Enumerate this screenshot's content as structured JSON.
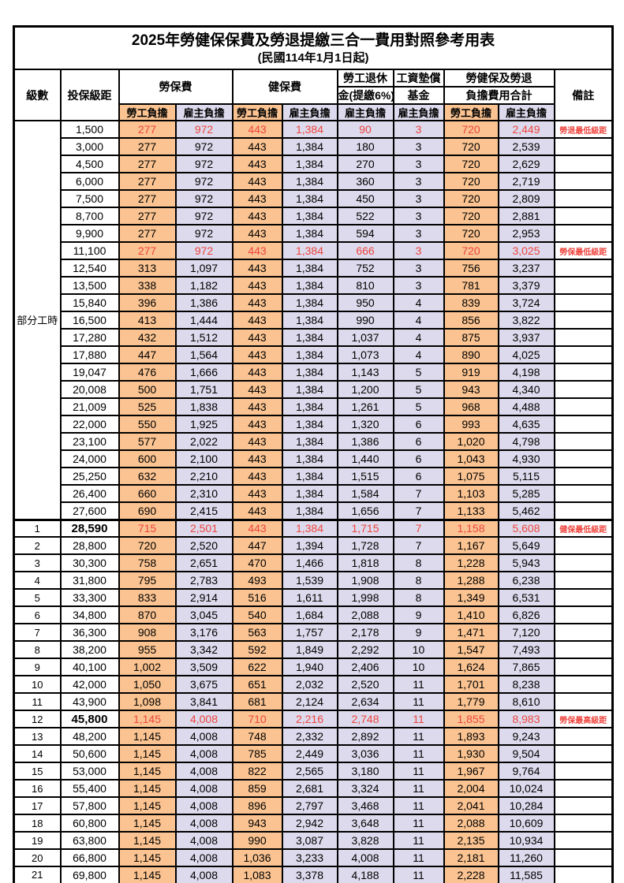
{
  "title": "2025年勞健保保費及勞退提繳三合一費用對照參考用表",
  "subtitle": "(民國114年1月1日起)",
  "header": {
    "level": "級數",
    "bracket": "投保級距",
    "labor_insurance": "勞保費",
    "health_insurance": "健保費",
    "pension_line1": "勞工退休",
    "pension_line2": "金(提繳6%)",
    "wage_fund_line1": "工資墊償",
    "wage_fund_line2": "基金",
    "total_line1": "勞健保及勞退",
    "total_line2": "負擔費用合計",
    "remark": "備註",
    "worker_burden": "勞工負擔",
    "employer_burden": "雇主負擔"
  },
  "part_time_label": "部分工時",
  "part_time_rowspan": 23,
  "colors": {
    "worker_column_bg": "#fac391",
    "employer_column_bg": "#dcdaec",
    "highlight_red": "#ee453e",
    "border_black": "#000000"
  },
  "rows": [
    {
      "bracket": "1,500",
      "li_w": "277",
      "li_e": "972",
      "hi_w": "443",
      "hi_e": "1,384",
      "pension": "90",
      "fund": "3",
      "tot_w": "720",
      "tot_e": "2,449",
      "red": true,
      "remark": "勞退最低級距"
    },
    {
      "bracket": "3,000",
      "li_w": "277",
      "li_e": "972",
      "hi_w": "443",
      "hi_e": "1,384",
      "pension": "180",
      "fund": "3",
      "tot_w": "720",
      "tot_e": "2,539"
    },
    {
      "bracket": "4,500",
      "li_w": "277",
      "li_e": "972",
      "hi_w": "443",
      "hi_e": "1,384",
      "pension": "270",
      "fund": "3",
      "tot_w": "720",
      "tot_e": "2,629"
    },
    {
      "bracket": "6,000",
      "li_w": "277",
      "li_e": "972",
      "hi_w": "443",
      "hi_e": "1,384",
      "pension": "360",
      "fund": "3",
      "tot_w": "720",
      "tot_e": "2,719"
    },
    {
      "bracket": "7,500",
      "li_w": "277",
      "li_e": "972",
      "hi_w": "443",
      "hi_e": "1,384",
      "pension": "450",
      "fund": "3",
      "tot_w": "720",
      "tot_e": "2,809"
    },
    {
      "bracket": "8,700",
      "li_w": "277",
      "li_e": "972",
      "hi_w": "443",
      "hi_e": "1,384",
      "pension": "522",
      "fund": "3",
      "tot_w": "720",
      "tot_e": "2,881"
    },
    {
      "bracket": "9,900",
      "li_w": "277",
      "li_e": "972",
      "hi_w": "443",
      "hi_e": "1,384",
      "pension": "594",
      "fund": "3",
      "tot_w": "720",
      "tot_e": "2,953"
    },
    {
      "bracket": "11,100",
      "li_w": "277",
      "li_e": "972",
      "hi_w": "443",
      "hi_e": "1,384",
      "pension": "666",
      "fund": "3",
      "tot_w": "720",
      "tot_e": "3,025",
      "red": true,
      "remark": "勞保最低級距"
    },
    {
      "bracket": "12,540",
      "li_w": "313",
      "li_e": "1,097",
      "hi_w": "443",
      "hi_e": "1,384",
      "pension": "752",
      "fund": "3",
      "tot_w": "756",
      "tot_e": "3,237"
    },
    {
      "bracket": "13,500",
      "li_w": "338",
      "li_e": "1,182",
      "hi_w": "443",
      "hi_e": "1,384",
      "pension": "810",
      "fund": "3",
      "tot_w": "781",
      "tot_e": "3,379"
    },
    {
      "bracket": "15,840",
      "li_w": "396",
      "li_e": "1,386",
      "hi_w": "443",
      "hi_e": "1,384",
      "pension": "950",
      "fund": "4",
      "tot_w": "839",
      "tot_e": "3,724"
    },
    {
      "bracket": "16,500",
      "li_w": "413",
      "li_e": "1,444",
      "hi_w": "443",
      "hi_e": "1,384",
      "pension": "990",
      "fund": "4",
      "tot_w": "856",
      "tot_e": "3,822"
    },
    {
      "bracket": "17,280",
      "li_w": "432",
      "li_e": "1,512",
      "hi_w": "443",
      "hi_e": "1,384",
      "pension": "1,037",
      "fund": "4",
      "tot_w": "875",
      "tot_e": "3,937"
    },
    {
      "bracket": "17,880",
      "li_w": "447",
      "li_e": "1,564",
      "hi_w": "443",
      "hi_e": "1,384",
      "pension": "1,073",
      "fund": "4",
      "tot_w": "890",
      "tot_e": "4,025"
    },
    {
      "bracket": "19,047",
      "li_w": "476",
      "li_e": "1,666",
      "hi_w": "443",
      "hi_e": "1,384",
      "pension": "1,143",
      "fund": "5",
      "tot_w": "919",
      "tot_e": "4,198"
    },
    {
      "bracket": "20,008",
      "li_w": "500",
      "li_e": "1,751",
      "hi_w": "443",
      "hi_e": "1,384",
      "pension": "1,200",
      "fund": "5",
      "tot_w": "943",
      "tot_e": "4,340"
    },
    {
      "bracket": "21,009",
      "li_w": "525",
      "li_e": "1,838",
      "hi_w": "443",
      "hi_e": "1,384",
      "pension": "1,261",
      "fund": "5",
      "tot_w": "968",
      "tot_e": "4,488"
    },
    {
      "bracket": "22,000",
      "li_w": "550",
      "li_e": "1,925",
      "hi_w": "443",
      "hi_e": "1,384",
      "pension": "1,320",
      "fund": "6",
      "tot_w": "993",
      "tot_e": "4,635"
    },
    {
      "bracket": "23,100",
      "li_w": "577",
      "li_e": "2,022",
      "hi_w": "443",
      "hi_e": "1,384",
      "pension": "1,386",
      "fund": "6",
      "tot_w": "1,020",
      "tot_e": "4,798"
    },
    {
      "bracket": "24,000",
      "li_w": "600",
      "li_e": "2,100",
      "hi_w": "443",
      "hi_e": "1,384",
      "pension": "1,440",
      "fund": "6",
      "tot_w": "1,043",
      "tot_e": "4,930"
    },
    {
      "bracket": "25,250",
      "li_w": "632",
      "li_e": "2,210",
      "hi_w": "443",
      "hi_e": "1,384",
      "pension": "1,515",
      "fund": "6",
      "tot_w": "1,075",
      "tot_e": "5,115"
    },
    {
      "bracket": "26,400",
      "li_w": "660",
      "li_e": "2,310",
      "hi_w": "443",
      "hi_e": "1,384",
      "pension": "1,584",
      "fund": "7",
      "tot_w": "1,103",
      "tot_e": "5,285"
    },
    {
      "bracket": "27,600",
      "li_w": "690",
      "li_e": "2,415",
      "hi_w": "443",
      "hi_e": "1,384",
      "pension": "1,656",
      "fund": "7",
      "tot_w": "1,133",
      "tot_e": "5,462"
    },
    {
      "level": "1",
      "bracket": "28,590",
      "li_w": "715",
      "li_e": "2,501",
      "hi_w": "443",
      "hi_e": "1,384",
      "pension": "1,715",
      "fund": "7",
      "tot_w": "1,158",
      "tot_e": "5,608",
      "red": true,
      "bold": true,
      "sep": true,
      "remark": "健保最低級距"
    },
    {
      "level": "2",
      "bracket": "28,800",
      "li_w": "720",
      "li_e": "2,520",
      "hi_w": "447",
      "hi_e": "1,394",
      "pension": "1,728",
      "fund": "7",
      "tot_w": "1,167",
      "tot_e": "5,649"
    },
    {
      "level": "3",
      "bracket": "30,300",
      "li_w": "758",
      "li_e": "2,651",
      "hi_w": "470",
      "hi_e": "1,466",
      "pension": "1,818",
      "fund": "8",
      "tot_w": "1,228",
      "tot_e": "5,943"
    },
    {
      "level": "4",
      "bracket": "31,800",
      "li_w": "795",
      "li_e": "2,783",
      "hi_w": "493",
      "hi_e": "1,539",
      "pension": "1,908",
      "fund": "8",
      "tot_w": "1,288",
      "tot_e": "6,238"
    },
    {
      "level": "5",
      "bracket": "33,300",
      "li_w": "833",
      "li_e": "2,914",
      "hi_w": "516",
      "hi_e": "1,611",
      "pension": "1,998",
      "fund": "8",
      "tot_w": "1,349",
      "tot_e": "6,531"
    },
    {
      "level": "6",
      "bracket": "34,800",
      "li_w": "870",
      "li_e": "3,045",
      "hi_w": "540",
      "hi_e": "1,684",
      "pension": "2,088",
      "fund": "9",
      "tot_w": "1,410",
      "tot_e": "6,826"
    },
    {
      "level": "7",
      "bracket": "36,300",
      "li_w": "908",
      "li_e": "3,176",
      "hi_w": "563",
      "hi_e": "1,757",
      "pension": "2,178",
      "fund": "9",
      "tot_w": "1,471",
      "tot_e": "7,120"
    },
    {
      "level": "8",
      "bracket": "38,200",
      "li_w": "955",
      "li_e": "3,342",
      "hi_w": "592",
      "hi_e": "1,849",
      "pension": "2,292",
      "fund": "10",
      "tot_w": "1,547",
      "tot_e": "7,493"
    },
    {
      "level": "9",
      "bracket": "40,100",
      "li_w": "1,002",
      "li_e": "3,509",
      "hi_w": "622",
      "hi_e": "1,940",
      "pension": "2,406",
      "fund": "10",
      "tot_w": "1,624",
      "tot_e": "7,865"
    },
    {
      "level": "10",
      "bracket": "42,000",
      "li_w": "1,050",
      "li_e": "3,675",
      "hi_w": "651",
      "hi_e": "2,032",
      "pension": "2,520",
      "fund": "11",
      "tot_w": "1,701",
      "tot_e": "8,238"
    },
    {
      "level": "11",
      "bracket": "43,900",
      "li_w": "1,098",
      "li_e": "3,841",
      "hi_w": "681",
      "hi_e": "2,124",
      "pension": "2,634",
      "fund": "11",
      "tot_w": "1,779",
      "tot_e": "8,610"
    },
    {
      "level": "12",
      "bracket": "45,800",
      "li_w": "1,145",
      "li_e": "4,008",
      "hi_w": "710",
      "hi_e": "2,216",
      "pension": "2,748",
      "fund": "11",
      "tot_w": "1,855",
      "tot_e": "8,983",
      "red": true,
      "bold": true,
      "remark": "勞保最高級距"
    },
    {
      "level": "13",
      "bracket": "48,200",
      "li_w": "1,145",
      "li_e": "4,008",
      "hi_w": "748",
      "hi_e": "2,332",
      "pension": "2,892",
      "fund": "11",
      "tot_w": "1,893",
      "tot_e": "9,243"
    },
    {
      "level": "14",
      "bracket": "50,600",
      "li_w": "1,145",
      "li_e": "4,008",
      "hi_w": "785",
      "hi_e": "2,449",
      "pension": "3,036",
      "fund": "11",
      "tot_w": "1,930",
      "tot_e": "9,504"
    },
    {
      "level": "15",
      "bracket": "53,000",
      "li_w": "1,145",
      "li_e": "4,008",
      "hi_w": "822",
      "hi_e": "2,565",
      "pension": "3,180",
      "fund": "11",
      "tot_w": "1,967",
      "tot_e": "9,764"
    },
    {
      "level": "16",
      "bracket": "55,400",
      "li_w": "1,145",
      "li_e": "4,008",
      "hi_w": "859",
      "hi_e": "2,681",
      "pension": "3,324",
      "fund": "11",
      "tot_w": "2,004",
      "tot_e": "10,024"
    },
    {
      "level": "17",
      "bracket": "57,800",
      "li_w": "1,145",
      "li_e": "4,008",
      "hi_w": "896",
      "hi_e": "2,797",
      "pension": "3,468",
      "fund": "11",
      "tot_w": "2,041",
      "tot_e": "10,284"
    },
    {
      "level": "18",
      "bracket": "60,800",
      "li_w": "1,145",
      "li_e": "4,008",
      "hi_w": "943",
      "hi_e": "2,942",
      "pension": "3,648",
      "fund": "11",
      "tot_w": "2,088",
      "tot_e": "10,609"
    },
    {
      "level": "19",
      "bracket": "63,800",
      "li_w": "1,145",
      "li_e": "4,008",
      "hi_w": "990",
      "hi_e": "3,087",
      "pension": "3,828",
      "fund": "11",
      "tot_w": "2,135",
      "tot_e": "10,934"
    },
    {
      "level": "20",
      "bracket": "66,800",
      "li_w": "1,145",
      "li_e": "4,008",
      "hi_w": "1,036",
      "hi_e": "3,233",
      "pension": "4,008",
      "fund": "11",
      "tot_w": "2,181",
      "tot_e": "11,260"
    },
    {
      "level": "21",
      "bracket": "69,800",
      "li_w": "1,145",
      "li_e": "4,008",
      "hi_w": "1,083",
      "hi_e": "3,378",
      "pension": "4,188",
      "fund": "11",
      "tot_w": "2,228",
      "tot_e": "11,585"
    }
  ]
}
